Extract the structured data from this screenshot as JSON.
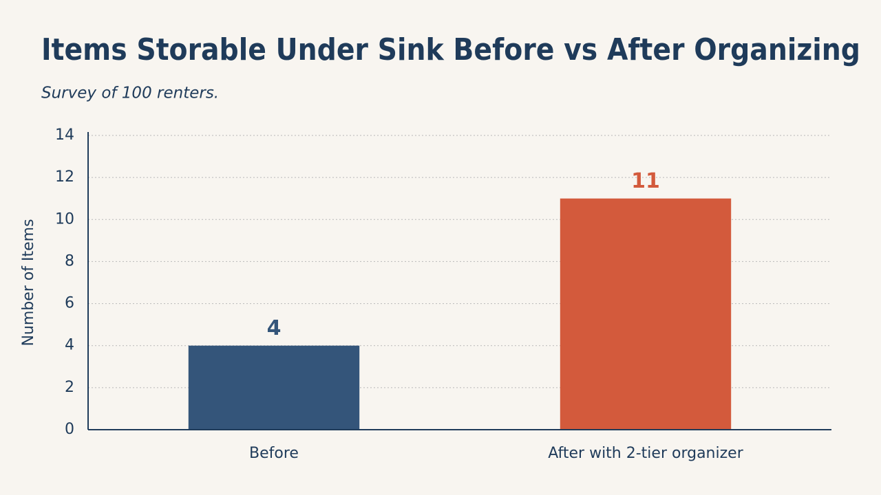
{
  "chart_data": {
    "type": "bar",
    "title": "Items Storable Under Sink Before vs After Organizing",
    "subtitle": "Survey of 100 renters.",
    "y_label": "Number of Items",
    "categories": [
      "Before",
      "After with 2-tier organizer"
    ],
    "values": [
      4,
      11
    ],
    "colors": [
      "#34557a",
      "#d35a3c"
    ],
    "ylim": [
      0,
      14
    ],
    "yticks": [
      0,
      2,
      4,
      6,
      8,
      10,
      12,
      14
    ],
    "grid": true
  }
}
